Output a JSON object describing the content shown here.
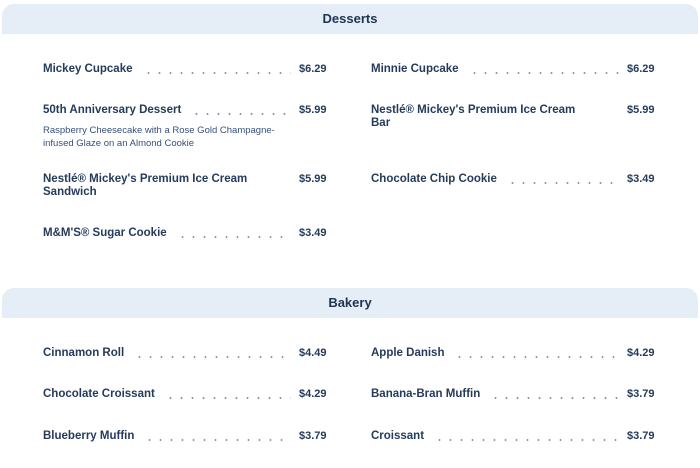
{
  "sections": [
    {
      "title": "Desserts",
      "items": [
        {
          "name": "Mickey Cupcake",
          "price": "$6.29"
        },
        {
          "name": "Minnie Cupcake",
          "price": "$6.29"
        },
        {
          "name": "50th Anniversary Dessert",
          "price": "$5.99",
          "description": "Raspberry Cheesecake with a Rose Gold Champagne-infused Glaze on an Almond Cookie"
        },
        {
          "name": "Nestlé® Mickey's Premium Ice Cream Bar",
          "price": "$5.99"
        },
        {
          "name": "Nestlé® Mickey's Premium Ice Cream Sandwich",
          "price": "$5.99"
        },
        {
          "name": "Chocolate Chip Cookie",
          "price": "$3.49"
        },
        {
          "name": "M&M'S® Sugar Cookie",
          "price": "$3.49"
        }
      ]
    },
    {
      "title": "Bakery",
      "items": [
        {
          "name": "Cinnamon Roll",
          "price": "$4.49"
        },
        {
          "name": "Apple Danish",
          "price": "$4.29"
        },
        {
          "name": "Chocolate Croissant",
          "price": "$4.29"
        },
        {
          "name": "Banana-Bran Muffin",
          "price": "$3.79"
        },
        {
          "name": "Blueberry Muffin",
          "price": "$3.79"
        },
        {
          "name": "Croissant",
          "price": "$3.79"
        }
      ]
    }
  ]
}
